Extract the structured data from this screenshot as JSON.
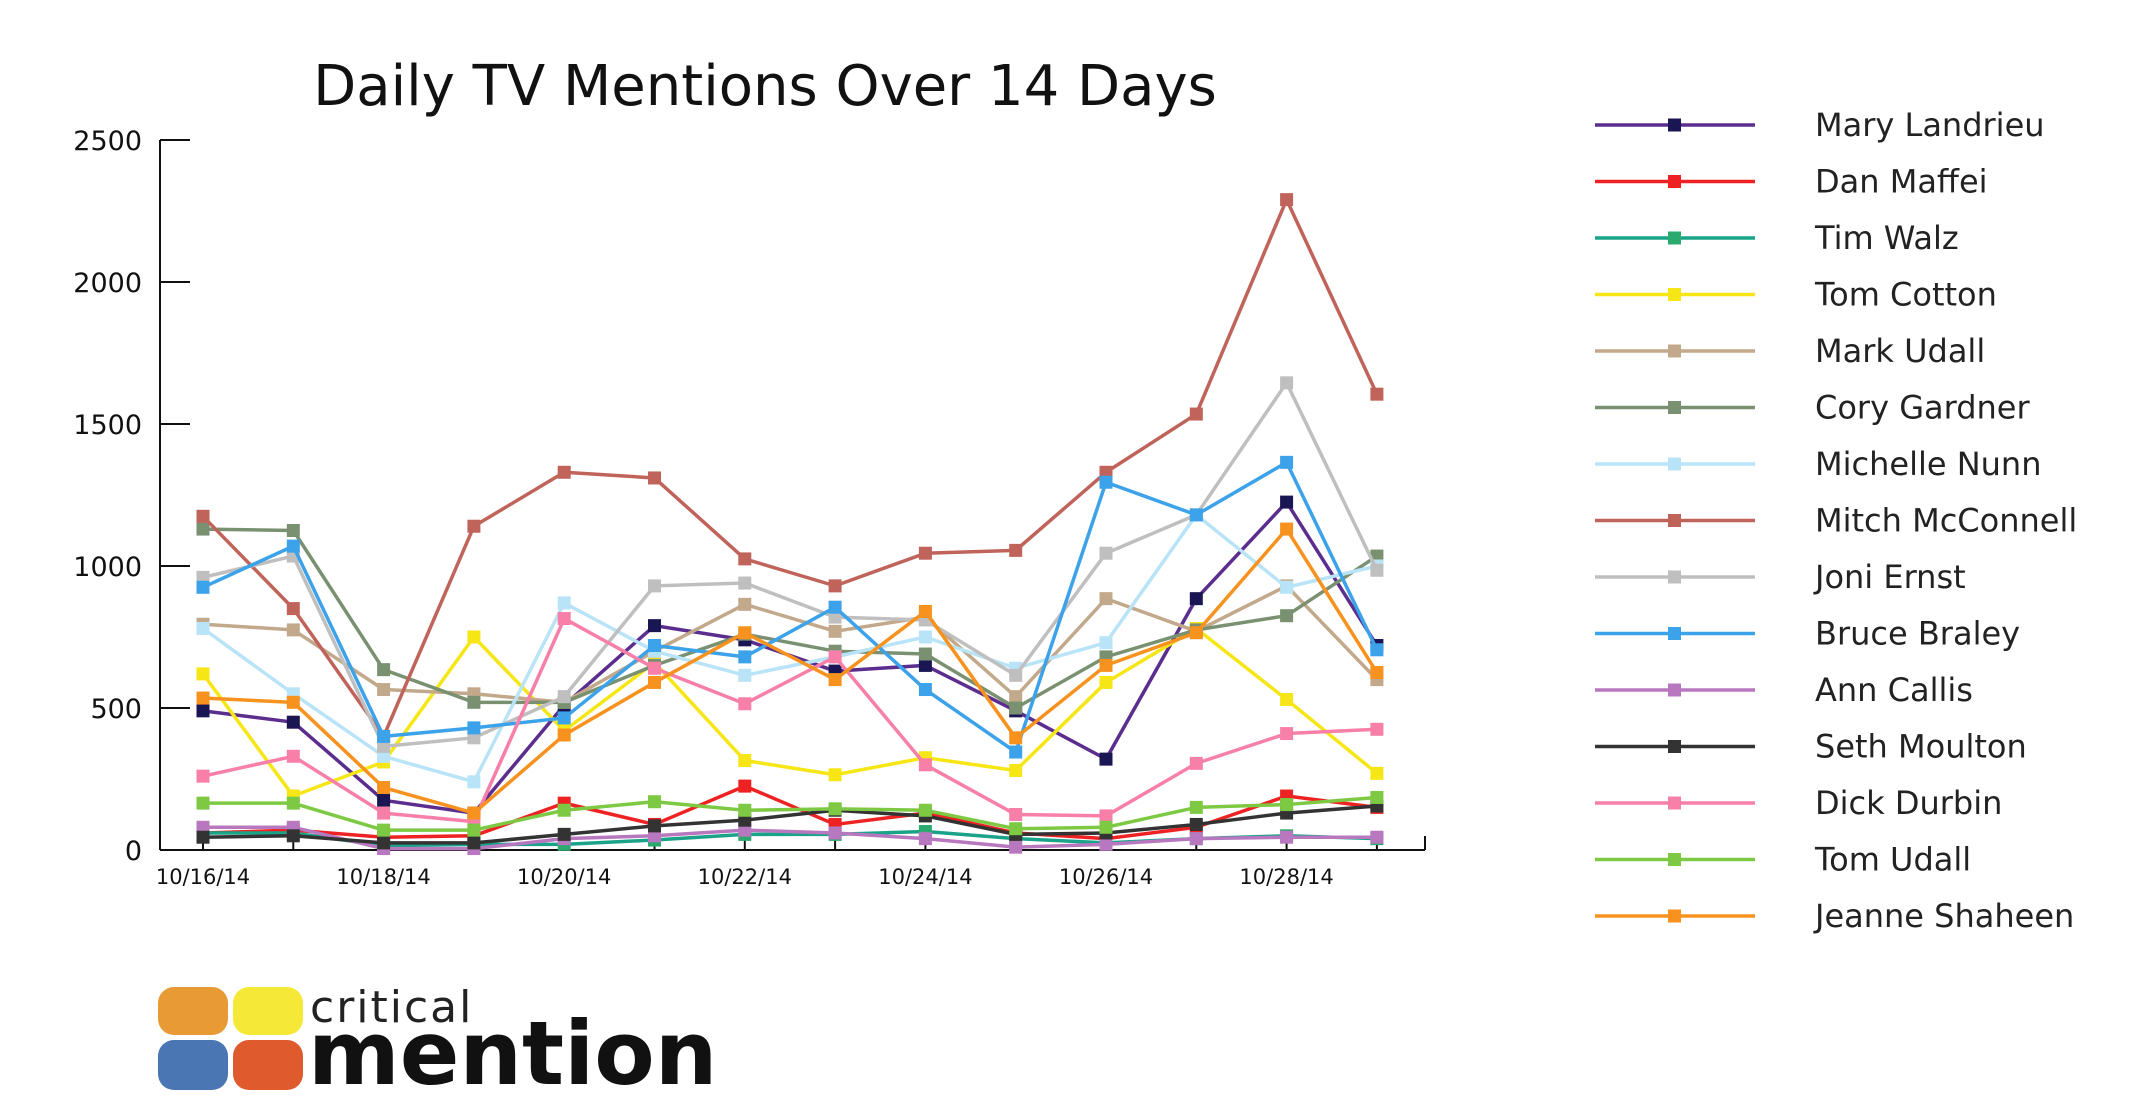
{
  "chart_data": {
    "type": "line",
    "title": "Daily TV Mentions Over 14 Days",
    "xlabel": "",
    "ylabel": "",
    "ylim": [
      0,
      2500
    ],
    "yticks": [
      0,
      500,
      1000,
      1500,
      2000,
      2500
    ],
    "x": [
      "10/16/14",
      "10/17/14",
      "10/18/14",
      "10/19/14",
      "10/20/14",
      "10/21/14",
      "10/22/14",
      "10/23/14",
      "10/24/14",
      "10/25/14",
      "10/26/14",
      "10/27/14",
      "10/28/14",
      "10/29/14"
    ],
    "xtick_labels": [
      "10/16/14",
      "10/18/14",
      "10/20/14",
      "10/22/14",
      "10/24/14",
      "10/26/14",
      "10/28/14"
    ],
    "grid": false,
    "legend_position": "right",
    "series": [
      {
        "name": "Mary Landrieu",
        "color": "#5b2d8e",
        "marker_color": "#1a1654",
        "values": [
          490,
          450,
          175,
          130,
          510,
          790,
          740,
          630,
          650,
          490,
          320,
          885,
          1225,
          720
        ]
      },
      {
        "name": "Dan Maffei",
        "color": "#ee2222",
        "marker_color": "#ee2222",
        "values": [
          60,
          70,
          45,
          50,
          165,
          90,
          225,
          90,
          130,
          60,
          40,
          80,
          190,
          150
        ]
      },
      {
        "name": "Tim Walz",
        "color": "#1aa389",
        "marker_color": "#2aaa6e",
        "values": [
          60,
          60,
          15,
          20,
          20,
          35,
          55,
          55,
          65,
          40,
          25,
          40,
          50,
          40
        ]
      },
      {
        "name": "Tom Cotton",
        "color": "#f7e615",
        "marker_color": "#f7e615",
        "values": [
          620,
          190,
          310,
          750,
          420,
          660,
          315,
          265,
          325,
          280,
          590,
          780,
          530,
          270
        ]
      },
      {
        "name": "Mark Udall",
        "color": "#c2a98b",
        "marker_color": "#c2a98b",
        "values": [
          795,
          775,
          565,
          550,
          520,
          700,
          865,
          770,
          820,
          540,
          885,
          770,
          930,
          600
        ]
      },
      {
        "name": "Cory Gardner",
        "color": "#7a9171",
        "marker_color": "#7a9171",
        "values": [
          1130,
          1125,
          635,
          520,
          520,
          650,
          760,
          700,
          690,
          500,
          680,
          775,
          825,
          1035
        ]
      },
      {
        "name": "Michelle Nunn",
        "color": "#b9e3f7",
        "marker_color": "#b9e3f7",
        "values": [
          780,
          550,
          330,
          240,
          870,
          700,
          615,
          680,
          750,
          640,
          730,
          1180,
          925,
          1000
        ]
      },
      {
        "name": "Mitch McConnell",
        "color": "#c0635a",
        "marker_color": "#c0635a",
        "values": [
          1175,
          850,
          400,
          1140,
          1330,
          1310,
          1025,
          930,
          1045,
          1055,
          1330,
          1535,
          2290,
          1605
        ]
      },
      {
        "name": "Joni Ernst",
        "color": "#bfbfbf",
        "marker_color": "#bfbfbf",
        "values": [
          960,
          1035,
          365,
          395,
          540,
          930,
          940,
          820,
          810,
          615,
          1045,
          1180,
          1645,
          985
        ]
      },
      {
        "name": "Bruce Braley",
        "color": "#3ca2ea",
        "marker_color": "#3ca2ea",
        "values": [
          925,
          1070,
          400,
          430,
          465,
          720,
          680,
          855,
          565,
          345,
          1295,
          1180,
          1365,
          705
        ]
      },
      {
        "name": "Ann Callis",
        "color": "#b878bf",
        "marker_color": "#b878bf",
        "values": [
          80,
          80,
          5,
          5,
          40,
          50,
          70,
          60,
          40,
          10,
          20,
          40,
          45,
          45
        ]
      },
      {
        "name": "Seth Moulton",
        "color": "#333333",
        "marker_color": "#333333",
        "values": [
          45,
          50,
          25,
          25,
          55,
          85,
          105,
          140,
          120,
          55,
          60,
          90,
          130,
          155
        ]
      },
      {
        "name": "Dick Durbin",
        "color": "#f77fa8",
        "marker_color": "#f77fa8",
        "values": [
          260,
          330,
          130,
          100,
          815,
          640,
          515,
          680,
          300,
          125,
          120,
          305,
          410,
          425
        ]
      },
      {
        "name": "Tom Udall",
        "color": "#7dc943",
        "marker_color": "#7dc943",
        "values": [
          165,
          165,
          70,
          70,
          140,
          170,
          140,
          145,
          140,
          75,
          80,
          150,
          160,
          185
        ]
      },
      {
        "name": "Jeanne Shaheen",
        "color": "#f7921e",
        "marker_color": "#f7921e",
        "values": [
          535,
          520,
          220,
          130,
          405,
          590,
          765,
          600,
          840,
          395,
          650,
          765,
          1130,
          625
        ]
      }
    ]
  },
  "logo": {
    "word1": "critical",
    "word2": "mention",
    "colors": [
      "#e89b35",
      "#f6e836",
      "#4a76b4",
      "#df5a2c"
    ]
  }
}
